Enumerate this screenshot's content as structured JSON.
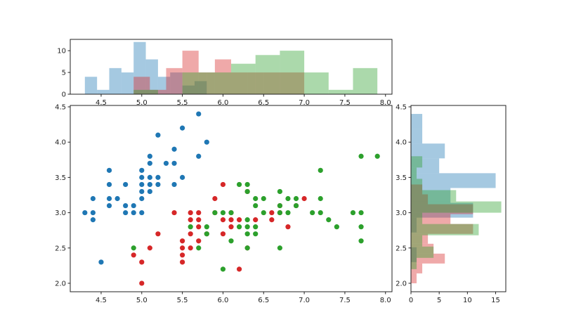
{
  "chart_data": [
    {
      "type": "scatter",
      "title": "",
      "xlabel": "",
      "ylabel": "",
      "xlim": [
        4.12,
        8.08
      ],
      "ylim": [
        1.88,
        4.52
      ],
      "xticks": [
        "4.5",
        "5.0",
        "5.5",
        "6.0",
        "6.5",
        "7.0",
        "7.5",
        "8.0"
      ],
      "yticks": [
        "2.0",
        "2.5",
        "3.0",
        "3.5",
        "4.0",
        "4.5"
      ],
      "colors": {
        "blue": "#1f77b4",
        "red": "#d62728",
        "green": "#2ca02c"
      },
      "series": [
        {
          "name": "blue",
          "color": "#1f77b4",
          "points": [
            [
              4.3,
              3.0
            ],
            [
              4.4,
              3.2
            ],
            [
              4.4,
              3.0
            ],
            [
              4.4,
              2.9
            ],
            [
              4.5,
              2.3
            ],
            [
              4.6,
              3.6
            ],
            [
              4.6,
              3.4
            ],
            [
              4.6,
              3.2
            ],
            [
              4.6,
              3.1
            ],
            [
              4.7,
              3.2
            ],
            [
              4.8,
              3.4
            ],
            [
              4.8,
              3.1
            ],
            [
              4.8,
              3.0
            ],
            [
              4.9,
              3.1
            ],
            [
              4.9,
              3.0
            ],
            [
              5.0,
              3.6
            ],
            [
              5.0,
              3.5
            ],
            [
              5.0,
              3.4
            ],
            [
              5.0,
              3.3
            ],
            [
              5.0,
              3.2
            ],
            [
              5.0,
              3.0
            ],
            [
              5.1,
              3.8
            ],
            [
              5.1,
              3.7
            ],
            [
              5.1,
              3.5
            ],
            [
              5.1,
              3.4
            ],
            [
              5.1,
              3.3
            ],
            [
              5.2,
              4.1
            ],
            [
              5.2,
              3.5
            ],
            [
              5.2,
              3.4
            ],
            [
              5.3,
              3.7
            ],
            [
              5.4,
              3.9
            ],
            [
              5.4,
              3.7
            ],
            [
              5.4,
              3.4
            ],
            [
              5.5,
              4.2
            ],
            [
              5.5,
              3.5
            ],
            [
              5.7,
              4.4
            ],
            [
              5.7,
              3.8
            ],
            [
              5.8,
              4.0
            ]
          ]
        },
        {
          "name": "red",
          "color": "#d62728",
          "points": [
            [
              4.9,
              2.4
            ],
            [
              5.0,
              2.3
            ],
            [
              5.0,
              2.0
            ],
            [
              5.1,
              2.5
            ],
            [
              5.2,
              2.7
            ],
            [
              5.4,
              3.0
            ],
            [
              5.5,
              2.6
            ],
            [
              5.5,
              2.5
            ],
            [
              5.5,
              2.4
            ],
            [
              5.5,
              2.3
            ],
            [
              5.6,
              3.0
            ],
            [
              5.6,
              2.9
            ],
            [
              5.6,
              2.7
            ],
            [
              5.6,
              2.5
            ],
            [
              5.7,
              3.0
            ],
            [
              5.7,
              2.9
            ],
            [
              5.7,
              2.8
            ],
            [
              5.7,
              2.6
            ],
            [
              5.8,
              2.7
            ],
            [
              5.9,
              3.2
            ],
            [
              5.9,
              3.0
            ],
            [
              6.0,
              3.4
            ],
            [
              6.0,
              2.9
            ],
            [
              6.0,
              2.7
            ],
            [
              6.1,
              3.0
            ],
            [
              6.1,
              2.9
            ],
            [
              6.1,
              2.8
            ],
            [
              6.2,
              2.9
            ],
            [
              6.2,
              2.2
            ],
            [
              6.3,
              3.3
            ],
            [
              6.3,
              2.5
            ],
            [
              6.4,
              2.9
            ],
            [
              6.6,
              3.0
            ],
            [
              6.6,
              2.9
            ],
            [
              6.7,
              3.1
            ],
            [
              6.7,
              3.0
            ],
            [
              6.8,
              2.8
            ],
            [
              6.9,
              3.1
            ],
            [
              7.0,
              3.2
            ]
          ]
        },
        {
          "name": "green",
          "color": "#2ca02c",
          "points": [
            [
              4.9,
              2.5
            ],
            [
              5.6,
              2.8
            ],
            [
              5.7,
              2.5
            ],
            [
              5.8,
              2.8
            ],
            [
              5.8,
              2.7
            ],
            [
              5.9,
              3.0
            ],
            [
              6.0,
              3.0
            ],
            [
              6.0,
              2.2
            ],
            [
              6.1,
              3.0
            ],
            [
              6.1,
              2.6
            ],
            [
              6.2,
              3.4
            ],
            [
              6.2,
              2.8
            ],
            [
              6.3,
              3.4
            ],
            [
              6.3,
              3.3
            ],
            [
              6.3,
              2.9
            ],
            [
              6.3,
              2.8
            ],
            [
              6.3,
              2.7
            ],
            [
              6.3,
              2.5
            ],
            [
              6.4,
              3.2
            ],
            [
              6.4,
              3.1
            ],
            [
              6.4,
              2.8
            ],
            [
              6.4,
              2.7
            ],
            [
              6.5,
              3.2
            ],
            [
              6.5,
              3.0
            ],
            [
              6.7,
              3.3
            ],
            [
              6.7,
              3.1
            ],
            [
              6.7,
              3.0
            ],
            [
              6.7,
              2.5
            ],
            [
              6.8,
              3.2
            ],
            [
              6.8,
              3.0
            ],
            [
              6.9,
              3.2
            ],
            [
              6.9,
              3.1
            ],
            [
              7.1,
              3.0
            ],
            [
              7.2,
              3.6
            ],
            [
              7.2,
              3.2
            ],
            [
              7.2,
              3.0
            ],
            [
              7.3,
              2.9
            ],
            [
              7.4,
              2.8
            ],
            [
              7.6,
              3.0
            ],
            [
              7.7,
              3.8
            ],
            [
              7.7,
              3.0
            ],
            [
              7.7,
              2.8
            ],
            [
              7.7,
              2.6
            ],
            [
              7.9,
              3.8
            ]
          ]
        }
      ]
    },
    {
      "type": "histogram",
      "orientation": "vertical",
      "position": "top",
      "xlim": [
        4.12,
        8.08
      ],
      "ylim": [
        0,
        12.6
      ],
      "xticks": [
        "4.5",
        "5.0",
        "5.5",
        "6.0",
        "6.5",
        "7.0",
        "7.5",
        "8.0"
      ],
      "yticks": [
        "0",
        "5",
        "10"
      ],
      "series": [
        {
          "name": "blue",
          "color": "#1f77b4",
          "alpha": 0.4,
          "bins": [
            [
              4.3,
              4.45,
              4
            ],
            [
              4.45,
              4.6,
              1
            ],
            [
              4.6,
              4.75,
              6
            ],
            [
              4.75,
              4.9,
              5
            ],
            [
              4.9,
              5.05,
              12
            ],
            [
              5.05,
              5.2,
              8
            ],
            [
              5.2,
              5.35,
              4
            ],
            [
              5.35,
              5.5,
              5
            ],
            [
              5.5,
              5.65,
              2
            ],
            [
              5.65,
              5.8,
              3
            ]
          ]
        },
        {
          "name": "red",
          "color": "#d62728",
          "alpha": 0.4,
          "bins": [
            [
              4.9,
              5.1,
              4
            ],
            [
              5.1,
              5.3,
              1
            ],
            [
              5.3,
              5.5,
              6
            ],
            [
              5.5,
              5.7,
              10
            ],
            [
              5.7,
              5.9,
              5
            ],
            [
              5.9,
              6.1,
              8
            ],
            [
              6.1,
              6.3,
              5
            ],
            [
              6.3,
              6.5,
              5
            ],
            [
              6.5,
              6.7,
              5
            ],
            [
              6.7,
              6.9,
              5
            ],
            [
              6.9,
              7.0,
              5
            ]
          ]
        },
        {
          "name": "green",
          "color": "#2ca02c",
          "alpha": 0.4,
          "bins": [
            [
              4.9,
              5.2,
              1
            ],
            [
              5.2,
              5.5,
              0
            ],
            [
              5.5,
              5.8,
              5
            ],
            [
              5.8,
              6.1,
              5
            ],
            [
              6.1,
              6.4,
              7
            ],
            [
              6.4,
              6.7,
              9
            ],
            [
              6.7,
              7.0,
              10
            ],
            [
              7.0,
              7.3,
              5
            ],
            [
              7.3,
              7.6,
              1
            ],
            [
              7.6,
              7.9,
              6
            ]
          ]
        }
      ]
    },
    {
      "type": "histogram",
      "orientation": "horizontal",
      "position": "right",
      "ylim": [
        1.88,
        4.52
      ],
      "xlim": [
        0,
        16.8
      ],
      "xticks": [
        "0",
        "5",
        "10",
        "15"
      ],
      "yticks": [
        "2.0",
        "2.5",
        "3.0",
        "3.5",
        "4.0",
        "4.5"
      ],
      "series": [
        {
          "name": "blue",
          "color": "#1f77b4",
          "alpha": 0.4,
          "bins": [
            [
              2.3,
              2.51,
              1
            ],
            [
              2.51,
              2.72,
              0
            ],
            [
              2.72,
              2.93,
              1
            ],
            [
              2.93,
              3.14,
              11
            ],
            [
              3.14,
              3.35,
              7
            ],
            [
              3.35,
              3.56,
              15
            ],
            [
              3.56,
              3.77,
              5
            ],
            [
              3.77,
              3.98,
              6
            ],
            [
              3.98,
              4.19,
              2
            ],
            [
              4.19,
              4.4,
              2
            ]
          ]
        },
        {
          "name": "red",
          "color": "#d62728",
          "alpha": 0.4,
          "bins": [
            [
              2.0,
              2.14,
              1
            ],
            [
              2.14,
              2.28,
              2
            ],
            [
              2.28,
              2.42,
              6
            ],
            [
              2.42,
              2.56,
              4
            ],
            [
              2.56,
              2.7,
              3
            ],
            [
              2.7,
              2.84,
              11
            ],
            [
              2.84,
              2.98,
              7
            ],
            [
              2.98,
              3.12,
              11
            ],
            [
              3.12,
              3.26,
              3
            ],
            [
              3.26,
              3.4,
              2
            ]
          ]
        },
        {
          "name": "green",
          "color": "#2ca02c",
          "alpha": 0.4,
          "bins": [
            [
              2.2,
              2.36,
              1
            ],
            [
              2.36,
              2.52,
              4
            ],
            [
              2.52,
              2.68,
              2
            ],
            [
              2.68,
              2.84,
              12
            ],
            [
              2.84,
              3.0,
              2
            ],
            [
              3.0,
              3.16,
              16
            ],
            [
              3.16,
              3.32,
              8
            ],
            [
              3.32,
              3.48,
              2
            ],
            [
              3.48,
              3.64,
              1
            ],
            [
              3.64,
              3.8,
              2
            ]
          ]
        }
      ]
    }
  ]
}
